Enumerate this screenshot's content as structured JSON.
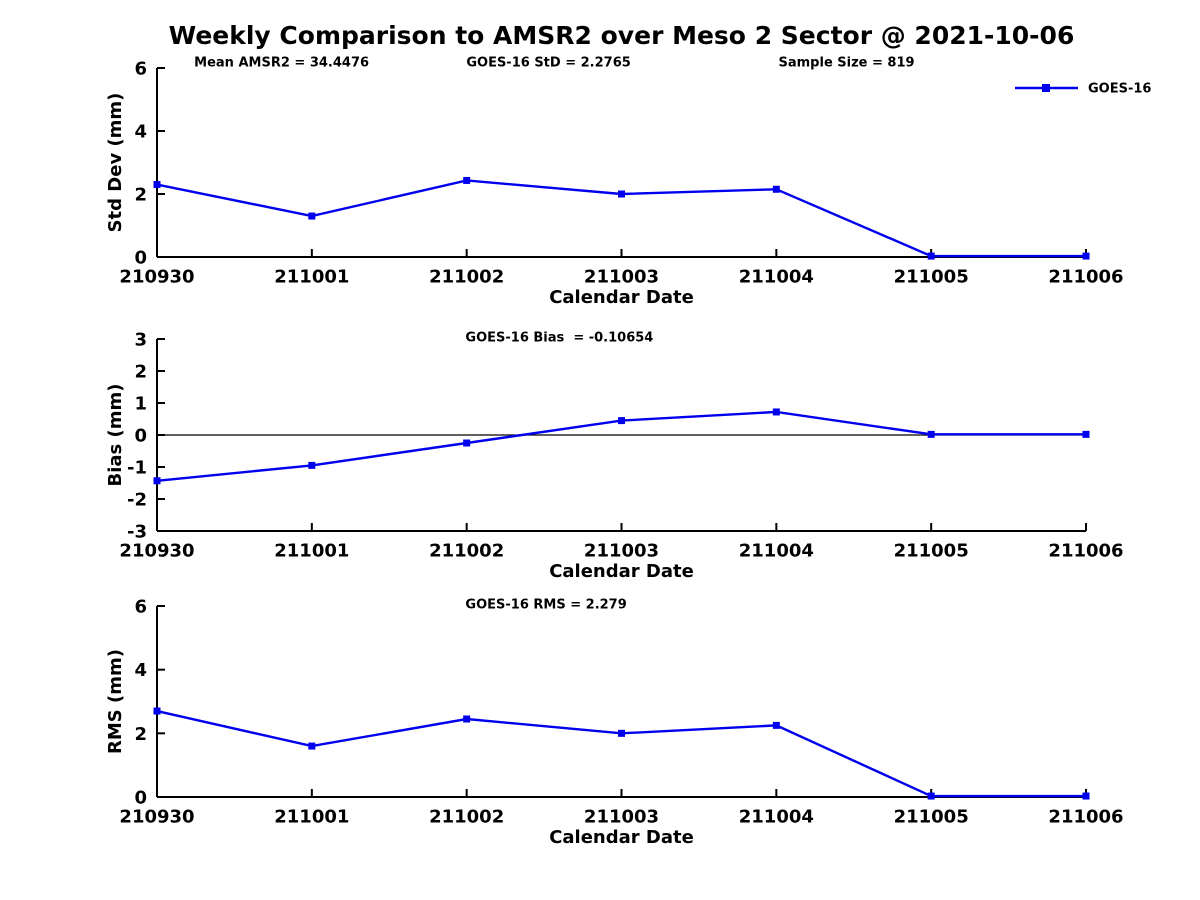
{
  "title": "Weekly Comparison to AMSR2 over Meso 2 Sector @ 2021-10-06",
  "colors": {
    "line": "#0000EE",
    "axis": "#000000",
    "text": "#000000",
    "background": "#ffffff"
  },
  "legend": {
    "label": "GOES-16",
    "position": "top-right"
  },
  "chart_data": [
    {
      "type": "line",
      "ylabel": "Std Dev (mm)",
      "xlabel": "Calendar Date",
      "ylim": [
        0,
        6
      ],
      "yticks": [
        "0",
        "2",
        "4",
        "6"
      ],
      "ytick_values": [
        0,
        2,
        4,
        6
      ],
      "categories": [
        "210930",
        "211001",
        "211002",
        "211003",
        "211004",
        "211005",
        "211006"
      ],
      "annotations": [
        "Mean AMSR2 = 34.4476",
        "GOES-16 StD = 2.2765",
        "Sample Size = 819"
      ],
      "grid": false,
      "zero_line": false,
      "show_legend": true,
      "series": [
        {
          "name": "GOES-16",
          "color": "#0000EE",
          "values": [
            2.3,
            1.3,
            2.43,
            2.0,
            2.15,
            0.03,
            0.03
          ]
        }
      ]
    },
    {
      "type": "line",
      "ylabel": "Bias (mm)",
      "xlabel": "Calendar Date",
      "ylim": [
        -3,
        3
      ],
      "yticks": [
        "-3",
        "-2",
        "-1",
        "0",
        "1",
        "2",
        "3"
      ],
      "ytick_values": [
        -3,
        -2,
        -1,
        0,
        1,
        2,
        3
      ],
      "categories": [
        "210930",
        "211001",
        "211002",
        "211003",
        "211004",
        "211005",
        "211006"
      ],
      "annotations": [
        "GOES-16 Bias  = -0.10654"
      ],
      "grid": false,
      "zero_line": true,
      "show_legend": false,
      "series": [
        {
          "name": "GOES-16",
          "color": "#0000EE",
          "values": [
            -1.43,
            -0.95,
            -0.25,
            0.45,
            0.72,
            0.02,
            0.02
          ]
        }
      ]
    },
    {
      "type": "line",
      "ylabel": "RMS (mm)",
      "xlabel": "Calendar Date",
      "ylim": [
        0,
        6
      ],
      "yticks": [
        "0",
        "2",
        "4",
        "6"
      ],
      "ytick_values": [
        0,
        2,
        4,
        6
      ],
      "categories": [
        "210930",
        "211001",
        "211002",
        "211003",
        "211004",
        "211005",
        "211006"
      ],
      "annotations": [
        "GOES-16 RMS = 2.279"
      ],
      "grid": false,
      "zero_line": false,
      "show_legend": false,
      "series": [
        {
          "name": "GOES-16",
          "color": "#0000EE",
          "values": [
            2.7,
            1.6,
            2.45,
            2.0,
            2.25,
            0.03,
            0.03
          ]
        }
      ]
    }
  ]
}
